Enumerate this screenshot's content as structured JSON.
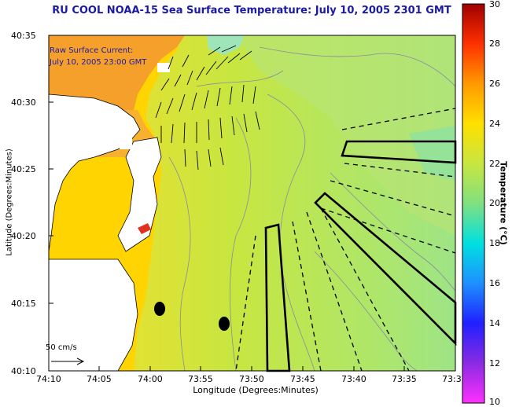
{
  "title": "RU COOL  NOAA-15  Sea Surface Temperature:  July 10, 2005 2301 GMT",
  "legend": {
    "line1": "Raw Surface Current:",
    "line2": "July 10, 2005 23:00 GMT"
  },
  "scale_label": "50 cm/s",
  "axes": {
    "xlabel": "Longitude (Degrees:Minutes)",
    "ylabel": "Latitude (Degrees:Minutes)",
    "x_ticks": [
      "74:10",
      "74:05",
      "74:00",
      "73:55",
      "73:50",
      "73:45",
      "73:40",
      "73:35",
      "73:3"
    ],
    "y_ticks": [
      "40:35",
      "40:30",
      "40:25",
      "40:20",
      "40:15",
      "40:10"
    ]
  },
  "colorbar": {
    "label": "Temperature (°C)",
    "ticks": [
      "30",
      "28",
      "26",
      "24",
      "22",
      "20",
      "18",
      "16",
      "14",
      "12",
      "10"
    ],
    "range": [
      10,
      30
    ]
  },
  "colors": {
    "title": "#1a1aa8",
    "ocean": "#c8e640",
    "shelf": "#a6e68a",
    "coast_warm": "#f09a30",
    "land": "#ffffff"
  }
}
